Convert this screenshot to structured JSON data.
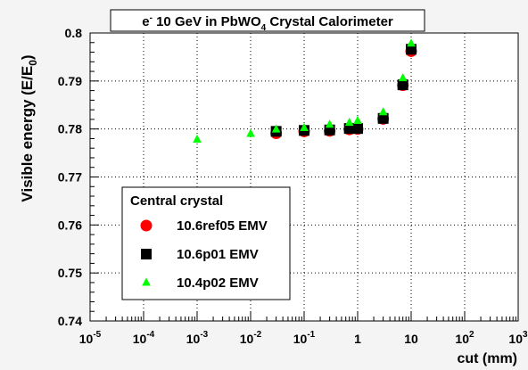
{
  "chart_data": {
    "type": "scatter",
    "title": "e⁻ 10 GeV in PbWO₄ Crystal Calorimeter",
    "title_parts": {
      "particle": "e",
      "particle_sup": "-",
      "pre": " 10 GeV in PbWO",
      "sub": "4",
      "post": " Crystal Calorimeter"
    },
    "xlabel": "cut (mm)",
    "ylabel": "Visible energy (E/E₀)",
    "ylabel_parts": {
      "pre": "Visible energy (E/E",
      "sub": "0",
      "post": ")"
    },
    "xscale": "log",
    "xlim": [
      1e-05,
      1000
    ],
    "ylim": [
      0.74,
      0.8
    ],
    "grid": true,
    "x_ticks": [
      {
        "base": "10",
        "exp": "-5"
      },
      {
        "base": "10",
        "exp": "-4"
      },
      {
        "base": "10",
        "exp": "-3"
      },
      {
        "base": "10",
        "exp": "-2"
      },
      {
        "base": "10",
        "exp": "-1"
      },
      {
        "base": "1",
        "exp": ""
      },
      {
        "base": "10",
        "exp": ""
      },
      {
        "base": "10",
        "exp": "2"
      },
      {
        "base": "10",
        "exp": "3"
      }
    ],
    "y_ticks": [
      "0.74",
      "0.75",
      "0.76",
      "0.77",
      "0.78",
      "0.79",
      "0.8"
    ],
    "legend": {
      "title": "Central crystal",
      "position": "bottom-left"
    },
    "series": [
      {
        "name": "10.6ref05 EMV",
        "marker": "circle",
        "color": "#ff0000",
        "x": [
          0.03,
          0.1,
          0.3,
          0.7,
          1,
          3,
          7,
          10
        ],
        "y": [
          0.7791,
          0.7795,
          0.7796,
          0.7799,
          0.78,
          0.7821,
          0.7891,
          0.7962
        ]
      },
      {
        "name": "10.6p01 EMV",
        "marker": "square",
        "color": "#000000",
        "x": [
          0.03,
          0.1,
          0.3,
          0.7,
          1,
          3,
          7,
          10
        ],
        "y": [
          0.7795,
          0.7797,
          0.7798,
          0.7801,
          0.7801,
          0.7822,
          0.7892,
          0.7966
        ]
      },
      {
        "name": "10.4p02 EMV",
        "marker": "triangle",
        "color": "#00ff00",
        "x": [
          0.001,
          0.01,
          0.03,
          0.1,
          0.3,
          0.7,
          1,
          3,
          7,
          10
        ],
        "y": [
          0.7778,
          0.779,
          0.7799,
          0.7802,
          0.7809,
          0.7813,
          0.7817,
          0.7835,
          0.7906,
          0.7978
        ]
      }
    ]
  }
}
